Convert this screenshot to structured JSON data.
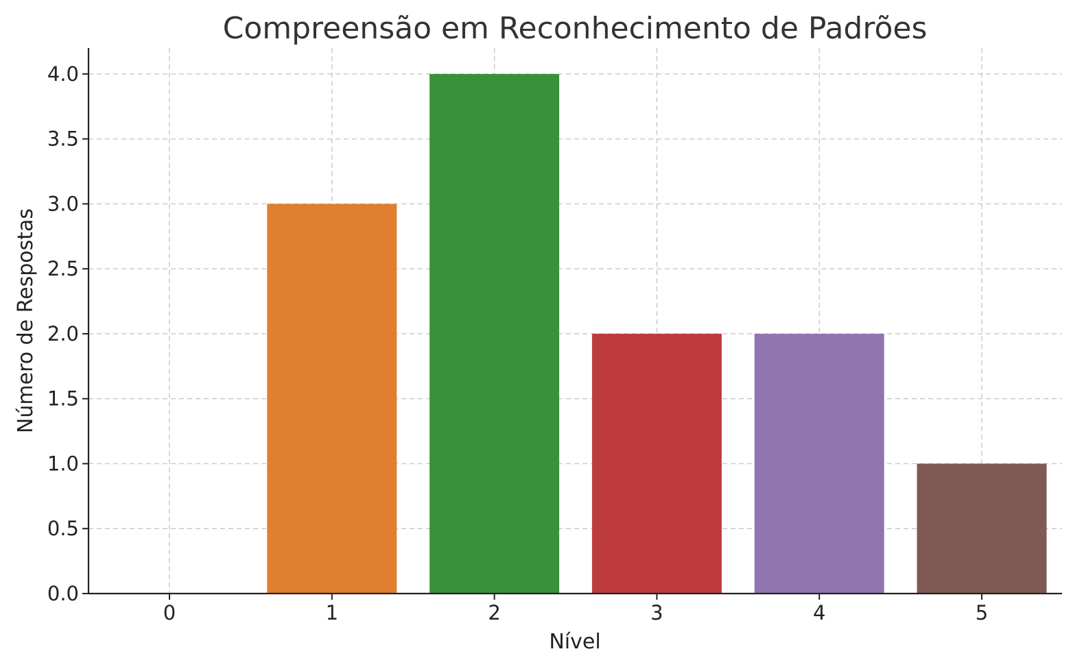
{
  "chart_data": {
    "type": "bar",
    "title": "Compreensão em Reconhecimento de Padrões",
    "xlabel": "Nível",
    "ylabel": "Número de Respostas",
    "categories": [
      "0",
      "1",
      "2",
      "3",
      "4",
      "5"
    ],
    "values": [
      0,
      3,
      4,
      2,
      2,
      1
    ],
    "colors": [
      "#1f77b4",
      "#e07f2e",
      "#3a913b",
      "#be3b3d",
      "#9174b0",
      "#7f5a52"
    ],
    "ylim": [
      0,
      4.2
    ],
    "yticks": [
      "0.0",
      "0.5",
      "1.0",
      "1.5",
      "2.0",
      "2.5",
      "3.0",
      "3.5",
      "4.0"
    ],
    "grid": true,
    "legend": "none"
  }
}
